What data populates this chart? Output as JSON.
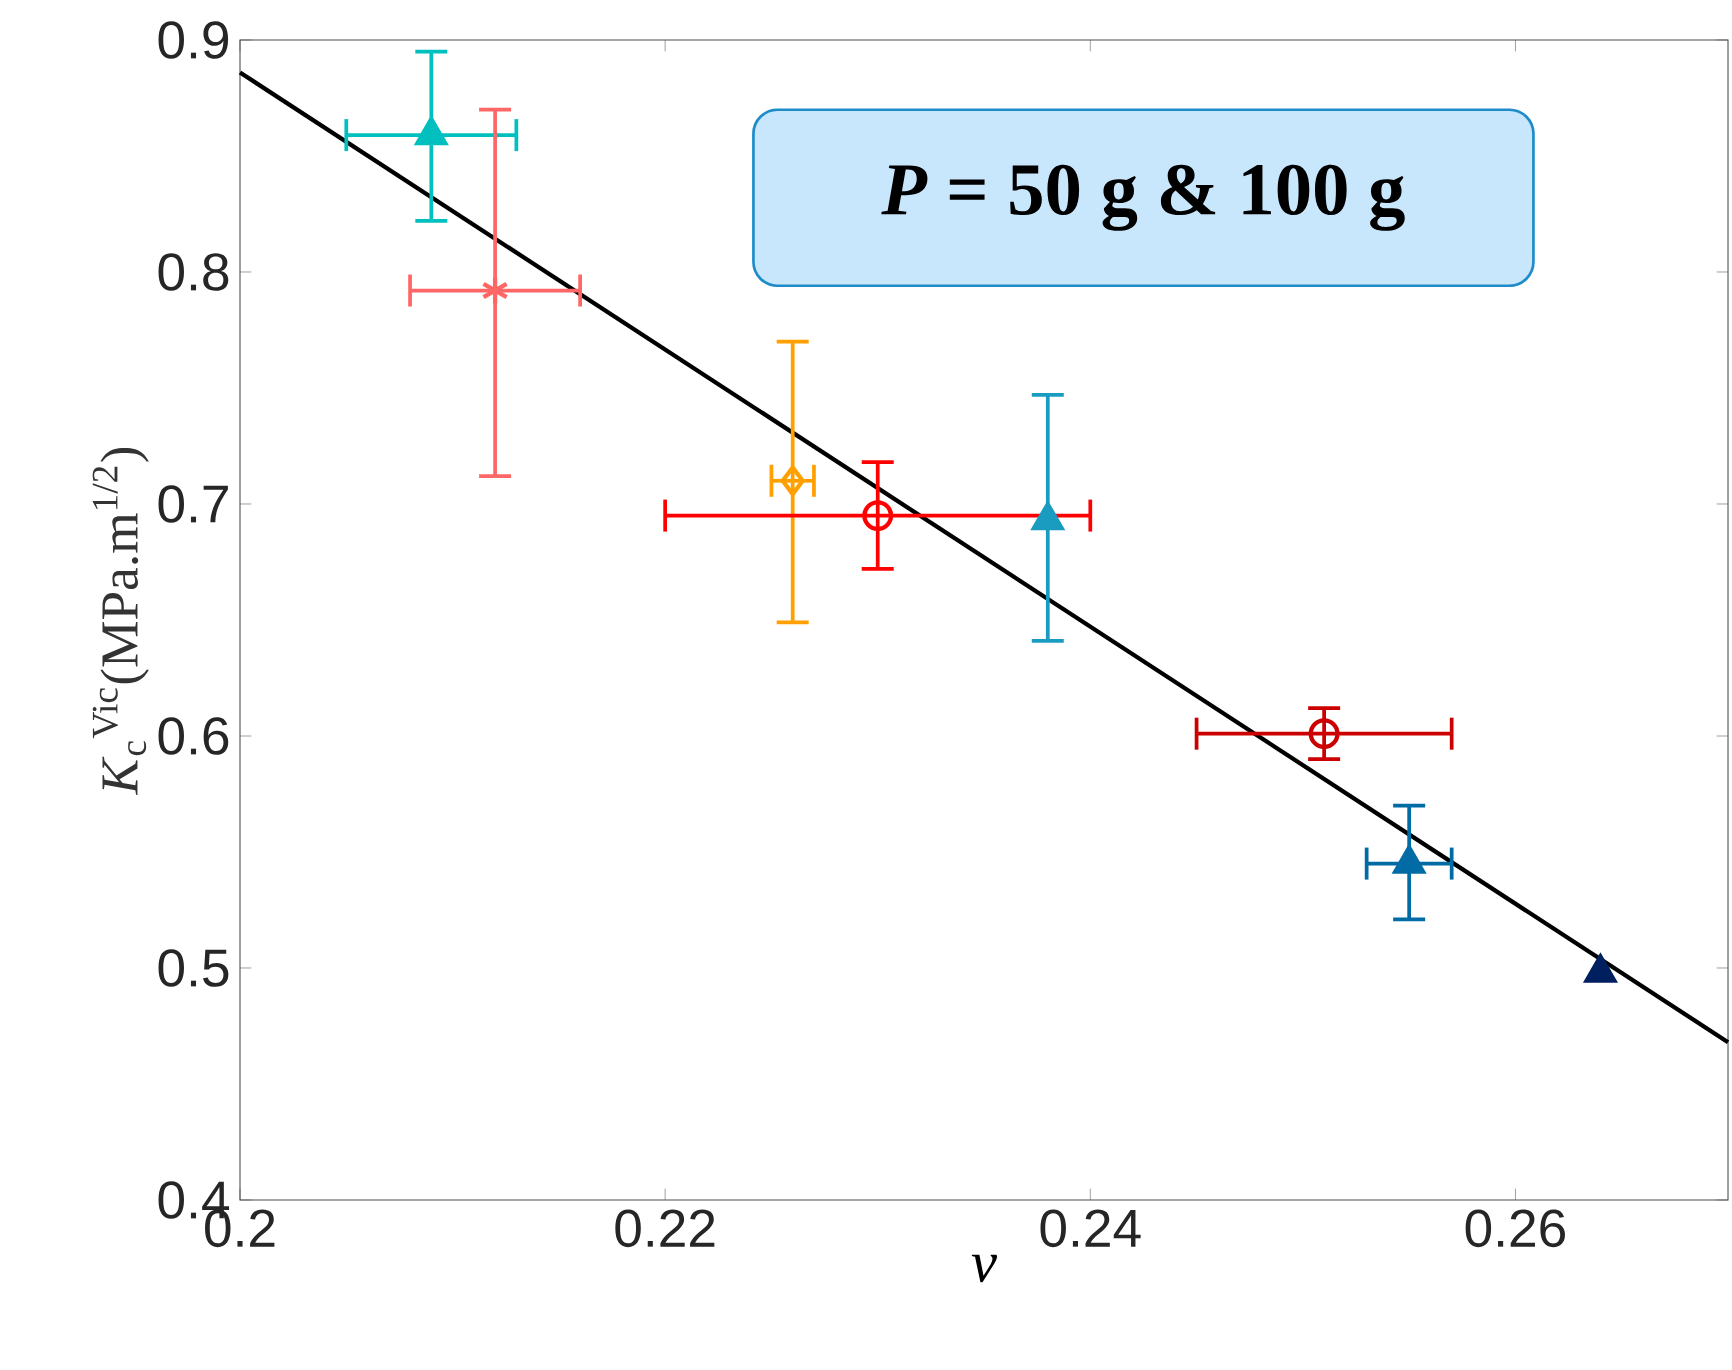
{
  "chart_data": {
    "type": "scatter",
    "xlabel": "ν",
    "ylabel": "*K*$_{c}$$^{Vic}$(MPa.m$^{1/2}$)",
    "xlim": [
      0.2,
      0.27
    ],
    "ylim": [
      0.4,
      0.9
    ],
    "xticks": [
      0.2,
      0.22,
      0.24,
      0.26
    ],
    "yticks": [
      0.4,
      0.5,
      0.6,
      0.7,
      0.8,
      0.9
    ],
    "annotations": [
      "*P* = 50 g & 100 g"
    ],
    "series": [
      {
        "type": "line",
        "color": "#000000",
        "marker": "none",
        "line_style": "solid",
        "x": [
          0.2,
          0.27
        ],
        "values": [
          0.886,
          0.468
        ]
      },
      {
        "color": "#00bfbf",
        "marker": "triangle",
        "x": [
          0.209
        ],
        "values": [
          0.859
        ],
        "errors": [
          [
            0.822,
            0.895
          ]
        ],
        "xerrors": [
          [
            0.205,
            0.213
          ]
        ]
      },
      {
        "color": "#ff6666",
        "marker": "cross",
        "x": [
          0.212
        ],
        "values": [
          0.792
        ],
        "errors": [
          [
            0.712,
            0.87
          ]
        ],
        "xerrors": [
          [
            0.208,
            0.216
          ]
        ]
      },
      {
        "color": "#ffa000",
        "marker": "diamond",
        "x": [
          0.226
        ],
        "values": [
          0.71
        ],
        "errors": [
          [
            0.649,
            0.77
          ]
        ],
        "xerrors": [
          [
            0.225,
            0.227
          ]
        ]
      },
      {
        "color": "#ff0000",
        "marker": "circle",
        "x": [
          0.23
        ],
        "values": [
          0.695
        ],
        "errors": [
          [
            0.672,
            0.718
          ]
        ],
        "xerrors": [
          [
            0.22,
            0.24
          ]
        ]
      },
      {
        "color": "#1a9cc0",
        "marker": "triangle",
        "x": [
          0.238
        ],
        "values": [
          0.693
        ],
        "errors": [
          [
            0.641,
            0.747
          ]
        ]
      },
      {
        "color": "#cc0000",
        "marker": "circle",
        "x": [
          0.251
        ],
        "values": [
          0.601
        ],
        "errors": [
          [
            0.59,
            0.612
          ]
        ],
        "xerrors": [
          [
            0.245,
            0.257
          ]
        ]
      },
      {
        "color": "#006ba4",
        "marker": "triangle",
        "x": [
          0.255
        ],
        "values": [
          0.545
        ],
        "errors": [
          [
            0.521,
            0.57
          ]
        ],
        "xerrors": [
          [
            0.253,
            0.257
          ]
        ]
      },
      {
        "color": "#001f5f",
        "marker": "triangle",
        "x": [
          0.264
        ],
        "values": [
          0.498
        ]
      }
    ]
  }
}
